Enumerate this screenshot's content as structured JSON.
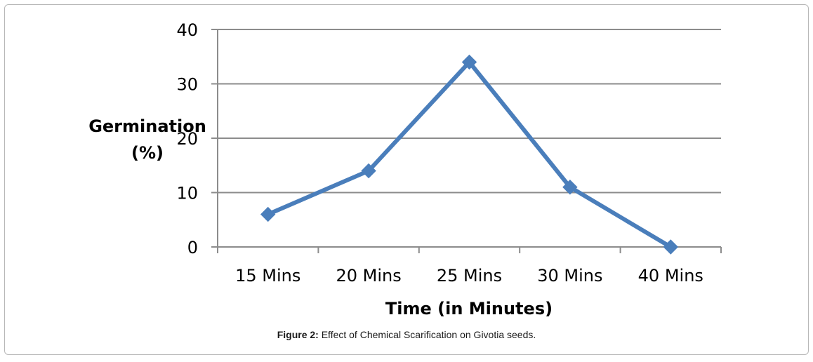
{
  "chart_data": {
    "type": "line",
    "categories": [
      "15 Mins",
      "20 Mins",
      "25 Mins",
      "30 Mins",
      "40 Mins"
    ],
    "series": [
      {
        "values": [
          6,
          14,
          34,
          11,
          0
        ]
      }
    ],
    "xlabel": "Time (in Minutes)",
    "ylabel_lines": [
      "Germination",
      "(%)"
    ],
    "ylim": [
      0,
      40
    ],
    "yticks": [
      0,
      10,
      20,
      30,
      40
    ],
    "grid": true,
    "line_color": "#4a7ebb",
    "grid_color": "#8c8c8c"
  },
  "caption": {
    "label": "Figure 2:",
    "text": " Effect of Chemical Scarification on Givotia seeds."
  }
}
